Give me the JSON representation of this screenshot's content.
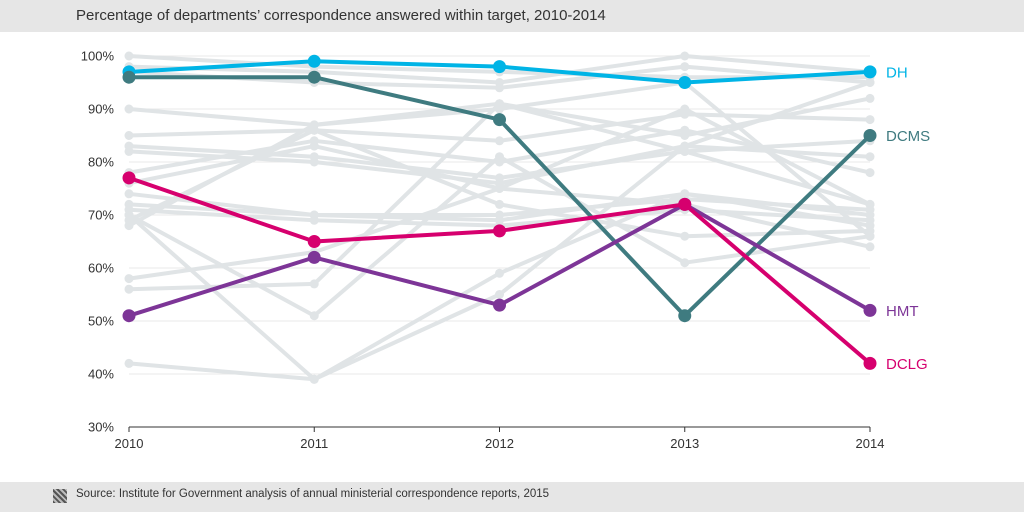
{
  "chart_data": {
    "type": "line",
    "title": "Percentage of departments’ correspondence answered within target, 2010-2014",
    "source": "Source: Institute for Government analysis of annual ministerial correspondence reports, 2015",
    "x": [
      "2010",
      "2011",
      "2012",
      "2013",
      "2014"
    ],
    "ylim": [
      30,
      100
    ],
    "yticks": [
      30,
      40,
      50,
      60,
      70,
      80,
      90,
      100
    ],
    "ytick_labels": [
      "30%",
      "40%",
      "50%",
      "60%",
      "70%",
      "80%",
      "90%",
      "100%"
    ],
    "grid": true,
    "background_color": "#e0e4e6",
    "highlighted_series": [
      {
        "name": "DH",
        "color": "#00b4e6",
        "values": [
          97,
          99,
          98,
          95,
          97
        ]
      },
      {
        "name": "DCMS",
        "color": "#3f7b80",
        "values": [
          96,
          96,
          88,
          51,
          85
        ]
      },
      {
        "name": "HMT",
        "color": "#7d3597",
        "values": [
          51,
          62,
          53,
          72,
          52
        ]
      },
      {
        "name": "DCLG",
        "color": "#d6006e",
        "values": [
          77,
          65,
          67,
          72,
          42
        ]
      }
    ],
    "background_series": [
      [
        100,
        98,
        97,
        96,
        96
      ],
      [
        98,
        97,
        95,
        100,
        97
      ],
      [
        97,
        95,
        94,
        98,
        95
      ],
      [
        90,
        87,
        91,
        85,
        92
      ],
      [
        85,
        86,
        84,
        89,
        88
      ],
      [
        83,
        81,
        77,
        82,
        84
      ],
      [
        82,
        80,
        76,
        83,
        81
      ],
      [
        78,
        84,
        80,
        86,
        78
      ],
      [
        76,
        83,
        75,
        90,
        72
      ],
      [
        74,
        70,
        70,
        73,
        71
      ],
      [
        72,
        70,
        69,
        74,
        70
      ],
      [
        71,
        69,
        68,
        71,
        69
      ],
      [
        70,
        39,
        59,
        74,
        68
      ],
      [
        69,
        86,
        72,
        66,
        67
      ],
      [
        68,
        87,
        90,
        95,
        66
      ],
      [
        58,
        63,
        75,
        72,
        64
      ],
      [
        56,
        57,
        91,
        82,
        72
      ],
      [
        70,
        51,
        81,
        61,
        66
      ],
      [
        42,
        39,
        55,
        83,
        95
      ]
    ]
  }
}
